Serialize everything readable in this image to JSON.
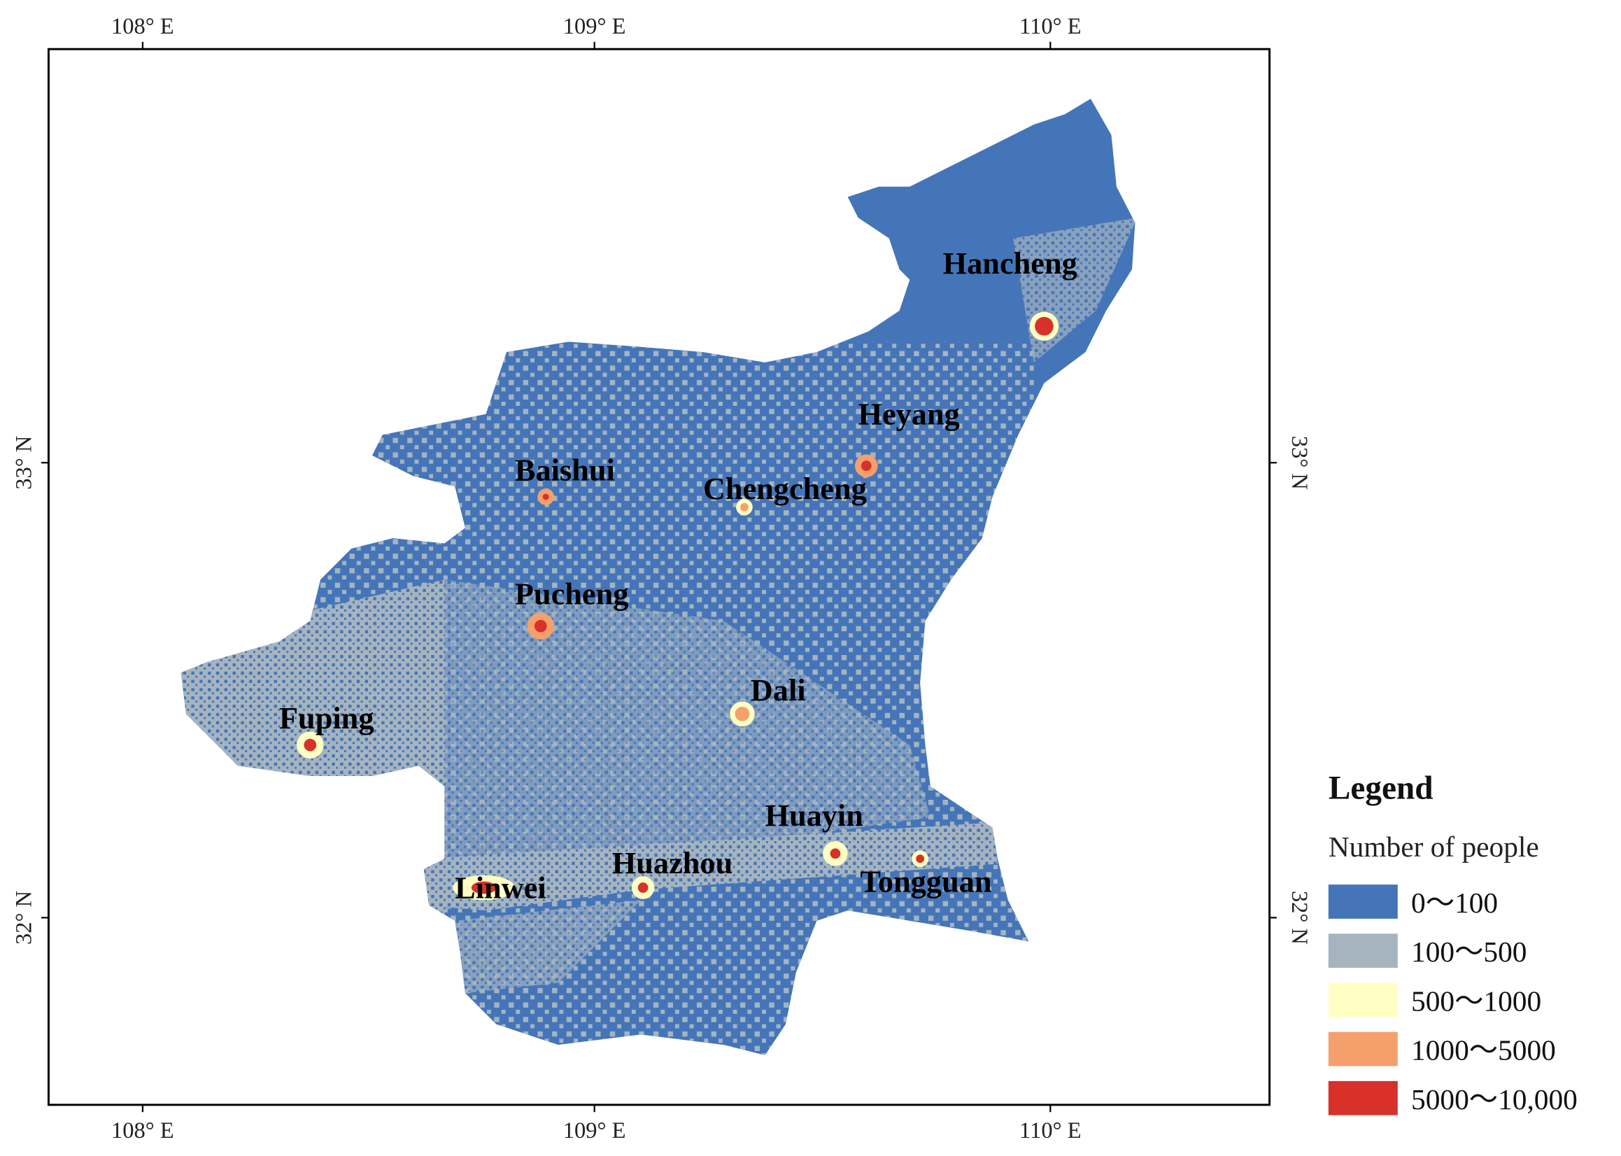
{
  "map": {
    "lon_ticks": [
      "108° E",
      "109° E",
      "110° E"
    ],
    "lat_ticks": [
      "33° N",
      "32° N"
    ],
    "cities": [
      "Hancheng",
      "Heyang",
      "Baishui",
      "Chengcheng",
      "Pucheng",
      "Dali",
      "Fuping",
      "Huayin",
      "Huazhou",
      "Linwei",
      "Tongguan"
    ],
    "legend": {
      "title": "Legend",
      "subtitle": "Number of people",
      "items": [
        {
          "label": "0～100",
          "color": "#4575b9"
        },
        {
          "label": "100～500",
          "color": "#a6b4bf"
        },
        {
          "label": "500～1000",
          "color": "#ffffc4"
        },
        {
          "label": "1000～5000",
          "color": "#f5a06c"
        },
        {
          "label": "5000～10,000",
          "color": "#d7312a"
        }
      ]
    }
  }
}
